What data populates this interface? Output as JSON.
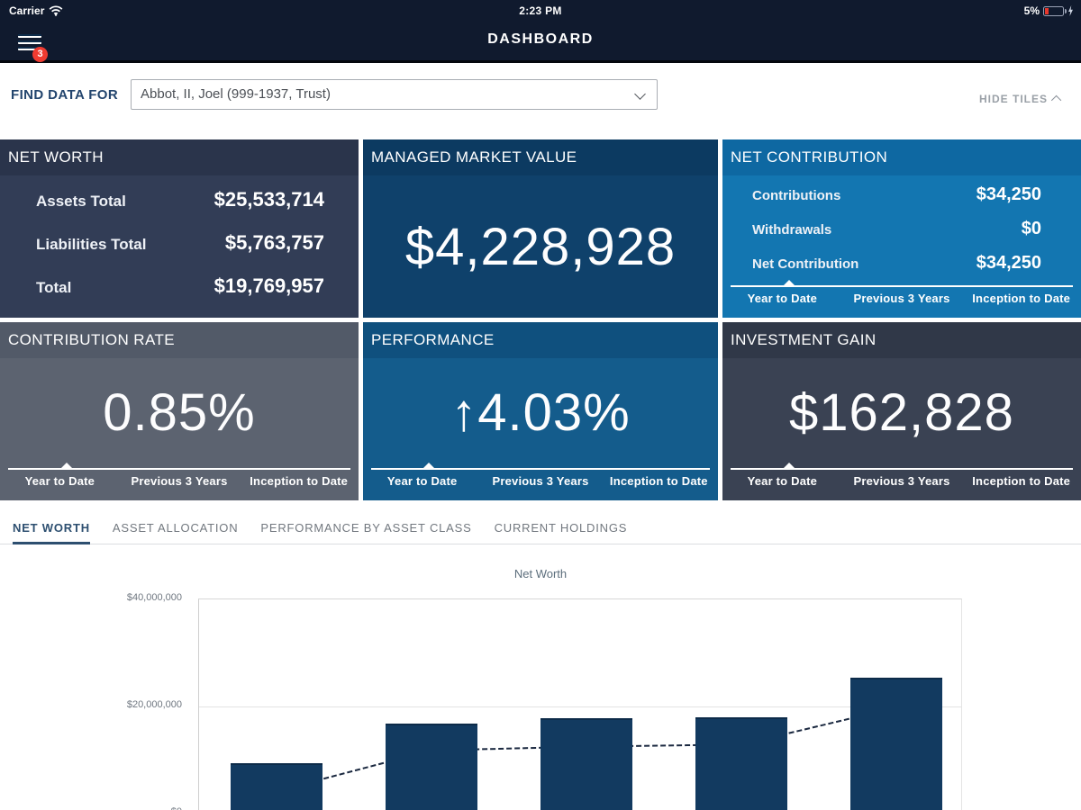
{
  "status_bar": {
    "carrier": "Carrier",
    "time": "2:23 PM",
    "battery_percent": "5%"
  },
  "nav": {
    "title": "DASHBOARD",
    "menu_badge_count": "3"
  },
  "finder": {
    "label": "FIND DATA FOR",
    "selected_value": "Abbot, II, Joel (999-1937, Trust)",
    "hide_tiles_label": "HIDE TILES"
  },
  "period_tabs": [
    "Year to Date",
    "Previous 3 Years",
    "Inception to Date"
  ],
  "tiles": {
    "net_worth": {
      "title": "NET WORTH",
      "rows": [
        {
          "label": "Assets Total",
          "value": "$25,533,714"
        },
        {
          "label": "Liabilities Total",
          "value": "$5,763,757"
        },
        {
          "label": "Total",
          "value": "$19,769,957"
        }
      ]
    },
    "managed_market_value": {
      "title": "MANAGED MARKET VALUE",
      "value": "$4,228,928"
    },
    "net_contribution": {
      "title": "NET CONTRIBUTION",
      "rows": [
        {
          "label": "Contributions",
          "value": "$34,250"
        },
        {
          "label": "Withdrawals",
          "value": "$0"
        },
        {
          "label": "Net Contribution",
          "value": "$34,250"
        }
      ],
      "selected_period": "Year to Date"
    },
    "contribution_rate": {
      "title": "CONTRIBUTION RATE",
      "value": "0.85%",
      "selected_period": "Year to Date"
    },
    "performance": {
      "title": "PERFORMANCE",
      "arrow": "↑",
      "value": "4.03%",
      "selected_period": "Year to Date"
    },
    "investment_gain": {
      "title": "INVESTMENT GAIN",
      "value": "$162,828",
      "selected_period": "Year to Date"
    }
  },
  "section_tabs": [
    {
      "label": "NET WORTH",
      "active": true
    },
    {
      "label": "ASSET ALLOCATION",
      "active": false
    },
    {
      "label": "PERFORMANCE BY ASSET CLASS",
      "active": false
    },
    {
      "label": "CURRENT HOLDINGS",
      "active": false
    }
  ],
  "chart_data": {
    "type": "bar",
    "title": "Net Worth",
    "ylim": [
      0,
      40000000
    ],
    "y_tick_labels": [
      "$40,000,000",
      "$20,000,000",
      "$0"
    ],
    "gridline_values": [
      20000000
    ],
    "x_tick_labels_visible": false,
    "grid": true,
    "series": [
      {
        "name": "bars",
        "type": "bar",
        "color": "#123a60",
        "values": [
          9400000,
          16800000,
          17800000,
          18000000,
          25400000
        ]
      },
      {
        "name": "line",
        "type": "line",
        "color": "#1b2940",
        "dashed": true,
        "values": [
          4200000,
          11800000,
          12500000,
          12900000,
          19800000
        ]
      }
    ]
  },
  "colors": {
    "topbar_bg": "#101a2e",
    "badge_red": "#ef3b31",
    "tile_net_worth": "#323d56",
    "tile_managed_market_value": "#0f416b",
    "tile_net_contribution": "#1376b1",
    "tile_contribution_rate": "#5c6370",
    "tile_performance": "#145c8c",
    "tile_investment_gain": "#3a4253",
    "active_tab": "#2d4f70",
    "bar_fill": "#123a60"
  }
}
